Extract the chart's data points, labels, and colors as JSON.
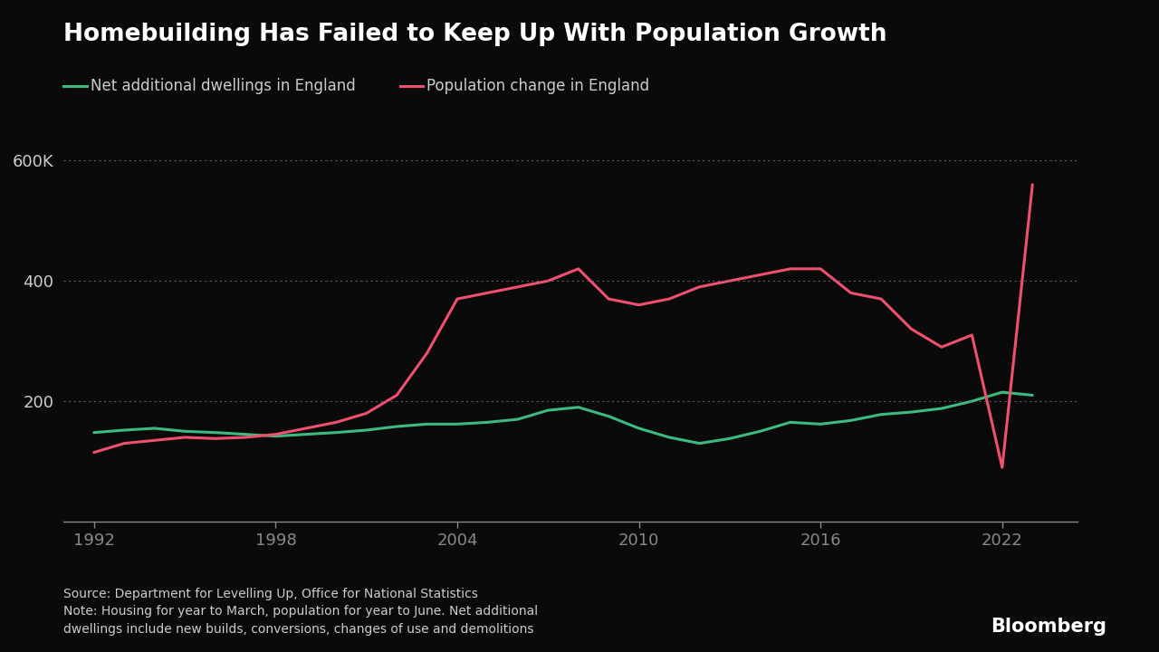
{
  "title": "Homebuilding Has Failed to Keep Up With Population Growth",
  "background_color": "#0a0a0a",
  "text_color": "#cccccc",
  "legend_line1": "Net additional dwellings in England",
  "legend_line2": "Population change in England",
  "source_text": "Source: Department for Levelling Up, Office for National Statistics\nNote: Housing for year to March, population for year to June. Net additional\ndwellings include new builds, conversions, changes of use and demolitions",
  "bloomberg_text": "Bloomberg",
  "dwellings_color": "#3dba7f",
  "population_color": "#f05070",
  "grid_color": "#666666",
  "axis_color": "#888888",
  "ylim": [
    0,
    650000
  ],
  "yticks": [
    0,
    200000,
    400000,
    600000
  ],
  "ytick_labels": [
    "",
    "200",
    "400",
    "600K"
  ],
  "xticks": [
    1992,
    1998,
    2004,
    2010,
    2016,
    2022
  ],
  "years_dwellings": [
    1992,
    1993,
    1994,
    1995,
    1996,
    1997,
    1998,
    1999,
    2000,
    2001,
    2002,
    2003,
    2004,
    2005,
    2006,
    2007,
    2008,
    2009,
    2010,
    2011,
    2012,
    2013,
    2014,
    2015,
    2016,
    2017,
    2018,
    2019,
    2020,
    2021,
    2022,
    2023
  ],
  "dwellings": [
    148000,
    152000,
    155000,
    150000,
    148000,
    145000,
    142000,
    145000,
    148000,
    152000,
    158000,
    162000,
    162000,
    165000,
    170000,
    185000,
    190000,
    175000,
    155000,
    140000,
    130000,
    138000,
    150000,
    165000,
    162000,
    168000,
    178000,
    182000,
    188000,
    200000,
    215000,
    210000
  ],
  "years_population": [
    1992,
    1993,
    1994,
    1995,
    1996,
    1997,
    1998,
    1999,
    2000,
    2001,
    2002,
    2003,
    2004,
    2005,
    2006,
    2007,
    2008,
    2009,
    2010,
    2011,
    2012,
    2013,
    2014,
    2015,
    2016,
    2017,
    2018,
    2019,
    2020,
    2021,
    2022,
    2023
  ],
  "population": [
    115000,
    130000,
    135000,
    140000,
    138000,
    140000,
    145000,
    155000,
    165000,
    180000,
    210000,
    280000,
    370000,
    380000,
    390000,
    400000,
    420000,
    370000,
    360000,
    370000,
    390000,
    400000,
    410000,
    420000,
    420000,
    380000,
    370000,
    320000,
    290000,
    310000,
    90000,
    560000
  ]
}
